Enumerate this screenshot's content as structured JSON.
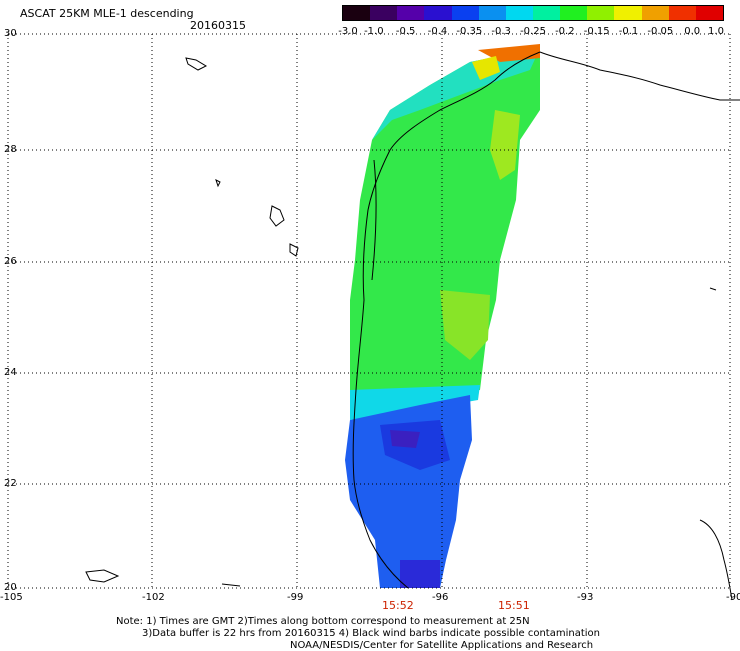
{
  "header": {
    "title": "ASCAT 25KM MLE-1 descending",
    "date": "20160315"
  },
  "colorbar": {
    "labels": [
      "-3.0",
      "-1.0",
      "-0.5",
      "-0.4",
      "-0.35",
      "-0.3",
      "-0.25",
      "-0.2",
      "-0.15",
      "-0.1",
      "-0.05",
      "0.0",
      "1.0"
    ],
    "colors": [
      "#1a0010",
      "#3a0060",
      "#5500aa",
      "#2a10d0",
      "#0a40f0",
      "#0a90f0",
      "#00d8f0",
      "#00f0a0",
      "#20f020",
      "#90f000",
      "#f0f000",
      "#f0a000",
      "#f03000",
      "#e00000"
    ]
  },
  "axes": {
    "lat_labels": [
      "30",
      "28",
      "26",
      "24",
      "22",
      "20"
    ],
    "lon_labels": [
      "-105",
      "-102",
      "-99",
      "-96",
      "-93",
      "-90"
    ]
  },
  "times": {
    "left": "15:52",
    "right": "15:51"
  },
  "notes": {
    "line1": "Note: 1) Times are GMT 2)Times along bottom correspond to measurement at 25N",
    "line2": "3)Data buffer is 22 hrs from 20160315 4) Black wind barbs indicate possible contamination",
    "line3": "NOAA/NESDIS/Center for Satellite Applications and Research"
  }
}
